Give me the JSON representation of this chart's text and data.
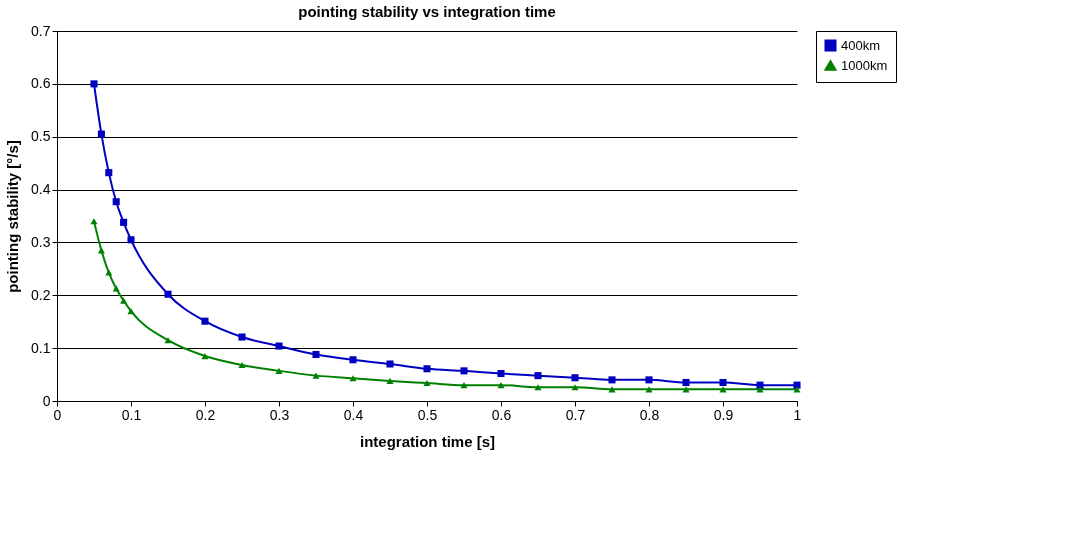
{
  "chart_data": {
    "type": "line",
    "title": "pointing stability vs integration time",
    "xlabel": "integration time [s]",
    "ylabel": "pointing stability [°/s]",
    "x": [
      0.05,
      0.06,
      0.07,
      0.08,
      0.09,
      0.1,
      0.15,
      0.2,
      0.25,
      0.3,
      0.35,
      0.4,
      0.45,
      0.5,
      0.55,
      0.6,
      0.65,
      0.7,
      0.75,
      0.8,
      0.85,
      0.9,
      0.95,
      1.0
    ],
    "series": [
      {
        "name": "400km",
        "color": "#0000c0",
        "marker": "square",
        "values": [
          0.6,
          0.505,
          0.432,
          0.377,
          0.338,
          0.305,
          0.202,
          0.151,
          0.121,
          0.104,
          0.088,
          0.078,
          0.07,
          0.061,
          0.057,
          0.052,
          0.048,
          0.044,
          0.04,
          0.04,
          0.035,
          0.035,
          0.03,
          0.03
        ]
      },
      {
        "name": "1000km",
        "color": "#008000",
        "marker": "triangle",
        "values": [
          0.34,
          0.285,
          0.243,
          0.213,
          0.19,
          0.17,
          0.115,
          0.085,
          0.068,
          0.057,
          0.048,
          0.043,
          0.038,
          0.034,
          0.03,
          0.03,
          0.026,
          0.026,
          0.022,
          0.022,
          0.022,
          0.022,
          0.022,
          0.022
        ]
      }
    ],
    "xlim": [
      0,
      1
    ],
    "xticks": [
      0,
      0.1,
      0.2,
      0.3,
      0.4,
      0.5,
      0.6,
      0.7,
      0.8,
      0.9,
      1
    ],
    "ylim": [
      0,
      0.7
    ],
    "yticks": [
      0,
      0.1,
      0.2,
      0.3,
      0.4,
      0.5,
      0.6,
      0.7
    ],
    "grid": "y",
    "legend": "right",
    "line_style": "solid"
  }
}
